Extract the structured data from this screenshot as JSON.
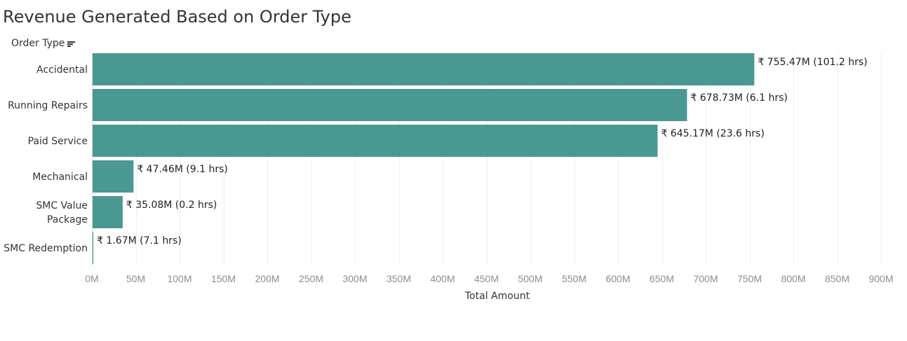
{
  "title": "Revenue Generated Based on Order Type",
  "dimension_header": {
    "label": "Order Type",
    "icon": "sort-descending-icon"
  },
  "colors": {
    "bar": "#4a9892",
    "grid": "#efefef",
    "title": "#333333"
  },
  "chart_data": {
    "type": "bar",
    "orientation": "horizontal",
    "title": "Revenue Generated Based on Order Type",
    "xlabel": "Total Amount",
    "ylabel": "Order Type",
    "categories": [
      [
        "Accidental"
      ],
      [
        "Running Repairs"
      ],
      [
        "Paid Service"
      ],
      [
        "Mechanical"
      ],
      [
        "SMC Value",
        "Package"
      ],
      [
        "SMC Redemption"
      ]
    ],
    "values": [
      755.47,
      678.73,
      645.17,
      47.46,
      35.08,
      1.67
    ],
    "value_unit": "M",
    "data_labels": [
      "₹ 755.47M (101.2 hrs)",
      "₹ 678.73M (6.1 hrs)",
      "₹ 645.17M (23.6 hrs)",
      "₹ 47.46M (9.1 hrs)",
      "₹ 35.08M (0.2 hrs)",
      "₹ 1.67M (7.1 hrs)"
    ],
    "xlim": [
      0,
      900
    ],
    "x_ticks": [
      0,
      50,
      100,
      150,
      200,
      250,
      300,
      350,
      400,
      450,
      500,
      550,
      600,
      650,
      700,
      750,
      800,
      850,
      900
    ],
    "x_tick_labels": [
      "0M",
      "50M",
      "100M",
      "150M",
      "200M",
      "250M",
      "300M",
      "350M",
      "400M",
      "450M",
      "500M",
      "550M",
      "600M",
      "650M",
      "700M",
      "750M",
      "800M",
      "850M",
      "900M"
    ],
    "grid": true,
    "legend": false
  }
}
